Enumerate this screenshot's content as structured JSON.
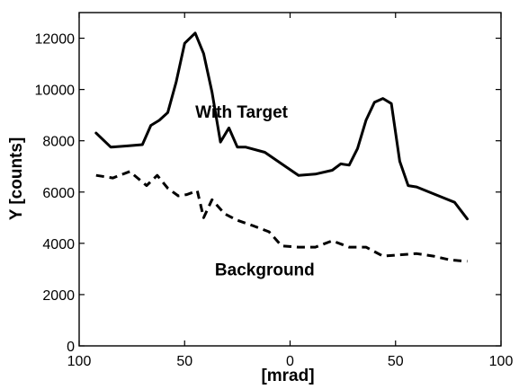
{
  "chart_data": {
    "type": "line",
    "title": "",
    "xlabel": "[mrad]",
    "ylabel": "Y [counts]",
    "xlim": [
      -100,
      100
    ],
    "ylim": [
      0,
      13000
    ],
    "x_tick_values": [
      -100,
      -50,
      0,
      50,
      100
    ],
    "x_tick_labels": [
      "100",
      "50",
      "0",
      "50",
      "100"
    ],
    "y_tick_values": [
      0,
      2000,
      4000,
      6000,
      8000,
      10000,
      12000
    ],
    "y_tick_labels": [
      "0",
      "2000",
      "4000",
      "6000",
      "8000",
      "10000",
      "12000"
    ],
    "grid": false,
    "legend": "none",
    "series": [
      {
        "name": "With Target",
        "line_style": "solid",
        "color": "#000000",
        "label_at": [
          -23,
          8900
        ],
        "points": [
          [
            -92,
            8300
          ],
          [
            -85,
            7750
          ],
          [
            -77,
            7800
          ],
          [
            -70,
            7850
          ],
          [
            -66,
            8600
          ],
          [
            -62,
            8800
          ],
          [
            -58,
            9100
          ],
          [
            -54,
            10300
          ],
          [
            -50,
            11800
          ],
          [
            -45,
            12200
          ],
          [
            -41,
            11400
          ],
          [
            -37,
            9900
          ],
          [
            -33,
            7950
          ],
          [
            -29,
            8500
          ],
          [
            -25,
            7750
          ],
          [
            -21,
            7750
          ],
          [
            -12,
            7550
          ],
          [
            -4,
            7100
          ],
          [
            4,
            6650
          ],
          [
            12,
            6700
          ],
          [
            20,
            6850
          ],
          [
            24,
            7100
          ],
          [
            28,
            7050
          ],
          [
            32,
            7700
          ],
          [
            36,
            8800
          ],
          [
            40,
            9500
          ],
          [
            44,
            9650
          ],
          [
            48,
            9450
          ],
          [
            52,
            7200
          ],
          [
            56,
            6250
          ],
          [
            60,
            6200
          ],
          [
            72,
            5800
          ],
          [
            78,
            5600
          ],
          [
            84,
            4950
          ]
        ]
      },
      {
        "name": "Background",
        "line_style": "dashed",
        "color": "#000000",
        "label_at": [
          -12,
          2750
        ],
        "points": [
          [
            -92,
            6650
          ],
          [
            -84,
            6550
          ],
          [
            -76,
            6800
          ],
          [
            -68,
            6250
          ],
          [
            -63,
            6650
          ],
          [
            -58,
            6150
          ],
          [
            -53,
            5850
          ],
          [
            -49,
            5900
          ],
          [
            -44,
            6050
          ],
          [
            -41,
            5000
          ],
          [
            -37,
            5700
          ],
          [
            -31,
            5150
          ],
          [
            -25,
            4900
          ],
          [
            -18,
            4700
          ],
          [
            -10,
            4450
          ],
          [
            -4,
            3900
          ],
          [
            4,
            3850
          ],
          [
            12,
            3850
          ],
          [
            20,
            4100
          ],
          [
            28,
            3850
          ],
          [
            36,
            3850
          ],
          [
            44,
            3500
          ],
          [
            52,
            3550
          ],
          [
            60,
            3600
          ],
          [
            68,
            3500
          ],
          [
            76,
            3350
          ],
          [
            84,
            3300
          ]
        ]
      }
    ]
  }
}
